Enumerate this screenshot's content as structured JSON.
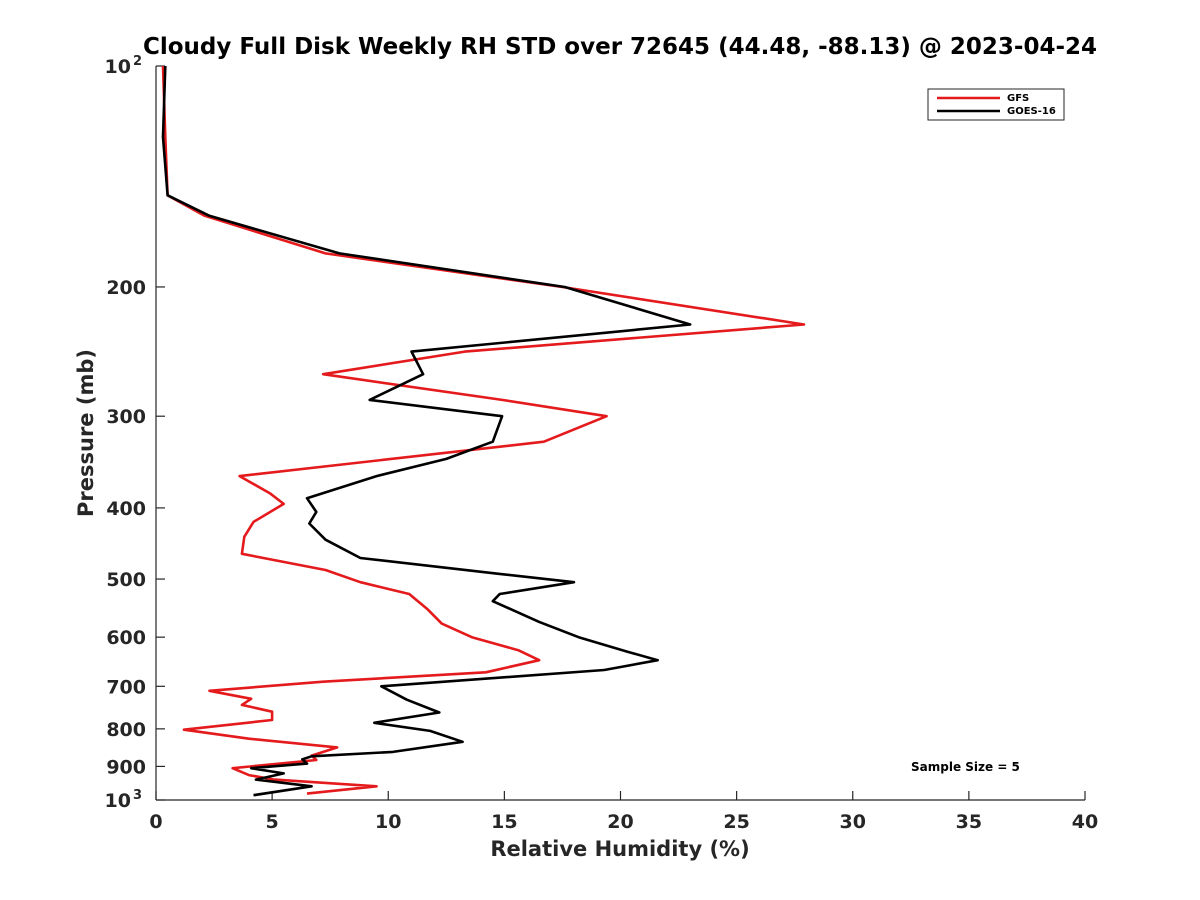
{
  "chart_data": {
    "type": "line",
    "title": "Cloudy Full Disk Weekly RH STD over 72645 (44.48, -88.13) @ 2023-04-24",
    "xlabel": "Relative Humidity (%)",
    "ylabel": "Pressure (mb)",
    "xlim": [
      0,
      40
    ],
    "ylim": [
      100,
      1000
    ],
    "y_scale": "log",
    "y_reversed": true,
    "grid": false,
    "x_ticks": [
      0,
      5,
      10,
      15,
      20,
      25,
      30,
      35,
      40
    ],
    "y_ticks": [
      {
        "value": 100,
        "label": "10",
        "exp": "2"
      },
      {
        "value": 200,
        "label": "200",
        "exp": ""
      },
      {
        "value": 300,
        "label": "300",
        "exp": ""
      },
      {
        "value": 400,
        "label": "400",
        "exp": ""
      },
      {
        "value": 500,
        "label": "500",
        "exp": ""
      },
      {
        "value": 600,
        "label": "600",
        "exp": ""
      },
      {
        "value": 700,
        "label": "700",
        "exp": ""
      },
      {
        "value": 800,
        "label": "800",
        "exp": ""
      },
      {
        "value": 900,
        "label": "900",
        "exp": ""
      },
      {
        "value": 1000,
        "label": "10",
        "exp": "3"
      }
    ],
    "legend": {
      "placement": "top-right"
    },
    "annotation": "Sample Size = 5",
    "series": [
      {
        "name": "GFS",
        "color": "#e41a1c",
        "points": [
          [
            0.3,
            100
          ],
          [
            0.4,
            125
          ],
          [
            0.5,
            150
          ],
          [
            2.1,
            160
          ],
          [
            7.3,
            180
          ],
          [
            17.5,
            200
          ],
          [
            27.9,
            225
          ],
          [
            13.3,
            245
          ],
          [
            7.2,
            263
          ],
          [
            14.9,
            285
          ],
          [
            19.4,
            300
          ],
          [
            16.7,
            325
          ],
          [
            3.6,
            362
          ],
          [
            4.9,
            382
          ],
          [
            5.5,
            395
          ],
          [
            4.2,
            418
          ],
          [
            3.8,
            438
          ],
          [
            3.7,
            462
          ],
          [
            7.3,
            486
          ],
          [
            8.8,
            505
          ],
          [
            10.9,
            524
          ],
          [
            11.7,
            550
          ],
          [
            12.3,
            575
          ],
          [
            13.6,
            600
          ],
          [
            15.6,
            625
          ],
          [
            16.5,
            645
          ],
          [
            14.2,
            670
          ],
          [
            7.2,
            690
          ],
          [
            2.3,
            710
          ],
          [
            4.1,
            728
          ],
          [
            3.7,
            742
          ],
          [
            5.0,
            758
          ],
          [
            5.0,
            778
          ],
          [
            1.2,
            802
          ],
          [
            4.0,
            825
          ],
          [
            7.8,
            848
          ],
          [
            6.7,
            870
          ],
          [
            6.9,
            882
          ],
          [
            3.3,
            905
          ],
          [
            4.0,
            925
          ],
          [
            5.1,
            938
          ],
          [
            9.5,
            958
          ],
          [
            6.5,
            980
          ]
        ]
      },
      {
        "name": "GOES-16",
        "color": "#000000",
        "points": [
          [
            0.4,
            100
          ],
          [
            0.3,
            125
          ],
          [
            0.5,
            150
          ],
          [
            2.3,
            160
          ],
          [
            7.9,
            180
          ],
          [
            17.6,
            200
          ],
          [
            23.0,
            225
          ],
          [
            11.0,
            245
          ],
          [
            11.5,
            263
          ],
          [
            9.2,
            285
          ],
          [
            14.9,
            300
          ],
          [
            14.5,
            325
          ],
          [
            12.5,
            343
          ],
          [
            9.5,
            362
          ],
          [
            6.5,
            388
          ],
          [
            6.9,
            405
          ],
          [
            6.6,
            420
          ],
          [
            7.3,
            442
          ],
          [
            8.8,
            468
          ],
          [
            14.8,
            492
          ],
          [
            18.0,
            505
          ],
          [
            14.8,
            524
          ],
          [
            14.5,
            536
          ],
          [
            16.5,
            572
          ],
          [
            18.2,
            600
          ],
          [
            20.3,
            628
          ],
          [
            21.6,
            645
          ],
          [
            19.3,
            665
          ],
          [
            9.7,
            700
          ],
          [
            10.8,
            730
          ],
          [
            12.2,
            760
          ],
          [
            9.4,
            785
          ],
          [
            11.8,
            805
          ],
          [
            13.2,
            833
          ],
          [
            10.2,
            860
          ],
          [
            6.7,
            872
          ],
          [
            6.3,
            880
          ],
          [
            6.5,
            892
          ],
          [
            4.1,
            905
          ],
          [
            5.5,
            920
          ],
          [
            4.3,
            938
          ],
          [
            6.7,
            958
          ],
          [
            4.2,
            985
          ]
        ]
      }
    ]
  }
}
